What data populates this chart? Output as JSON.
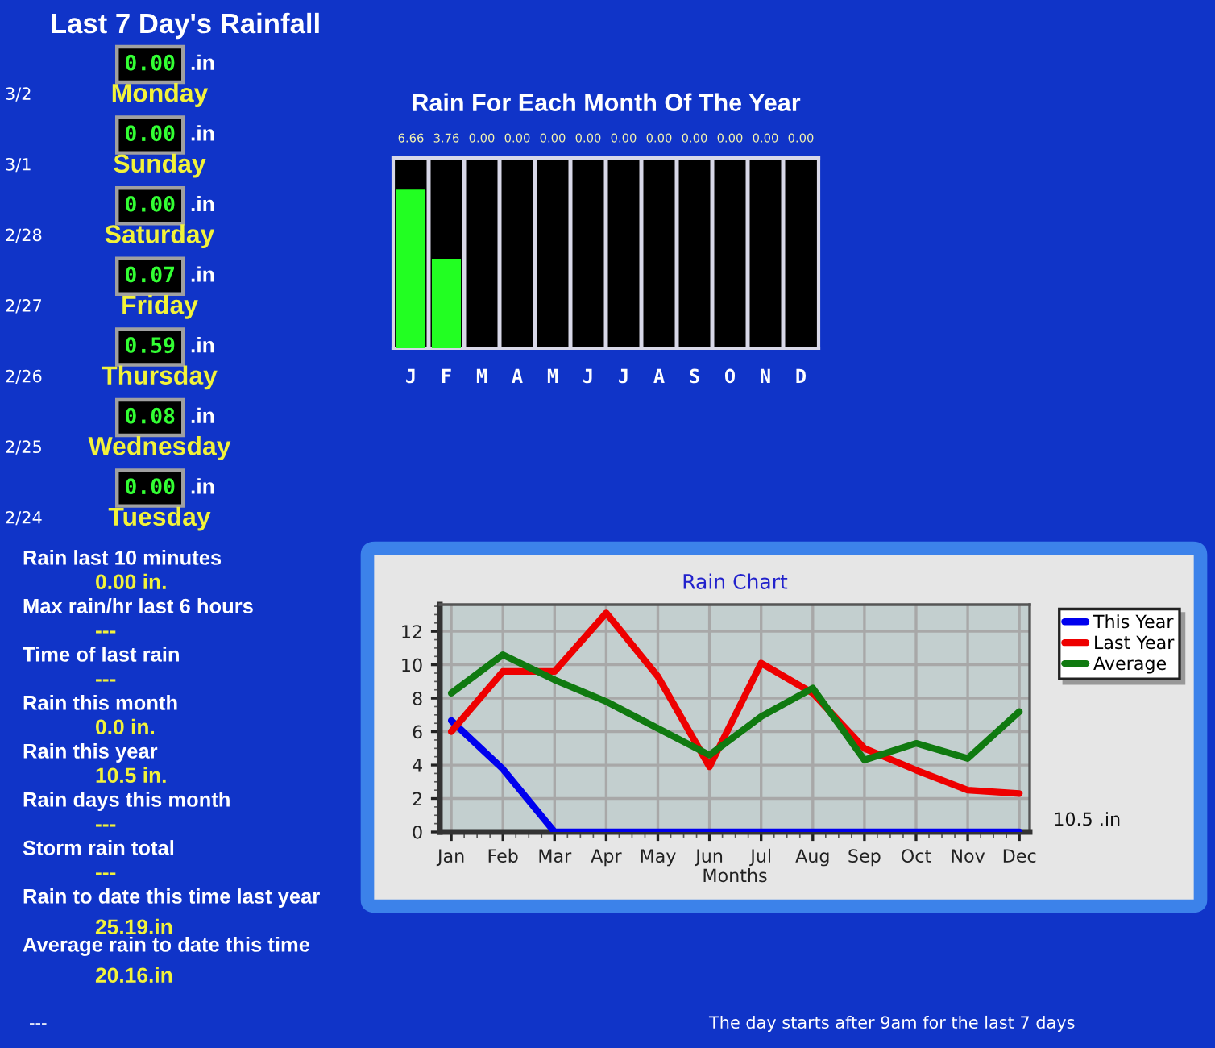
{
  "chart_data": [
    {
      "type": "other",
      "title": "Last 7 Day's Rainfall",
      "annotations": [
        "0.00",
        ".in",
        "3/2",
        "Monday",
        "0.00",
        ".in",
        "3/1",
        "Sunday",
        "0.00",
        ".in",
        "2/28",
        "Saturday",
        "0.07",
        ".in",
        "2/27",
        "Friday",
        "0.59",
        ".in",
        "2/26",
        "Thursday",
        "0.08",
        ".in",
        "2/25",
        "Wednesday",
        "0.00",
        ".in",
        "2/24",
        "Tuesday"
      ]
    },
    {
      "type": "bar",
      "title": "Rain For Each Month Of The Year",
      "categories": [
        "J",
        "F",
        "M",
        "A",
        "M",
        "J",
        "J",
        "A",
        "S",
        "O",
        "N",
        "D"
      ],
      "values": [
        6.66,
        3.76,
        0,
        0,
        0,
        0,
        0,
        0,
        0,
        0,
        0,
        0
      ],
      "value_labels": [
        "6.66",
        "3.76",
        "0.00",
        "0.00",
        "0.00",
        "0.00",
        "0.00",
        "0.00",
        "0.00",
        "0.00",
        "0.00",
        "0.00"
      ],
      "color": "#22ff22",
      "grid": "x"
    },
    {
      "type": "other",
      "annotations": [
        "Rain last 10 minutes",
        "0.00 in.",
        "Max rain/hr last 6 hours",
        "---",
        "Time of last rain",
        "---",
        "Rain this month",
        "0.0 in.",
        "Rain this year",
        "10.5 in.",
        "Rain days this month",
        "---",
        "Storm rain total",
        "---",
        "Rain to date this time last year",
        "25.19.in",
        "Average rain to date this time",
        "20.16.in"
      ]
    },
    {
      "type": "line",
      "title": "Rain Chart",
      "xlabel": "Months",
      "categories": [
        "Jan",
        "Feb",
        "Mar",
        "Apr",
        "May",
        "Jun",
        "Jul",
        "Aug",
        "Sep",
        "Oct",
        "Nov",
        "Dec"
      ],
      "series": [
        {
          "name": "This Year",
          "color": "#0000ee",
          "values": [
            6.66,
            3.76,
            0,
            0,
            0,
            0,
            0,
            0,
            0,
            0,
            0,
            0
          ]
        },
        {
          "name": "Last Year",
          "color": "#ee0000",
          "values": [
            6.0,
            9.6,
            9.6,
            13.1,
            9.3,
            3.9,
            10.1,
            8.3,
            5.0,
            3.7,
            2.5,
            2.3
          ]
        },
        {
          "name": "Average",
          "color": "#107a10",
          "values": [
            8.3,
            10.6,
            9.1,
            7.8,
            6.2,
            4.6,
            6.9,
            8.6,
            4.3,
            5.3,
            4.4,
            7.2
          ]
        }
      ],
      "ylim": [
        0,
        13.6
      ],
      "yticks": [
        0,
        2,
        4,
        6,
        8,
        10,
        12
      ],
      "grid": true,
      "legend": "top right",
      "annotations": [
        "10.5 .in"
      ]
    },
    {
      "type": "other",
      "annotations": [
        "---",
        "The day starts after 9am for the last 7 days"
      ]
    }
  ]
}
